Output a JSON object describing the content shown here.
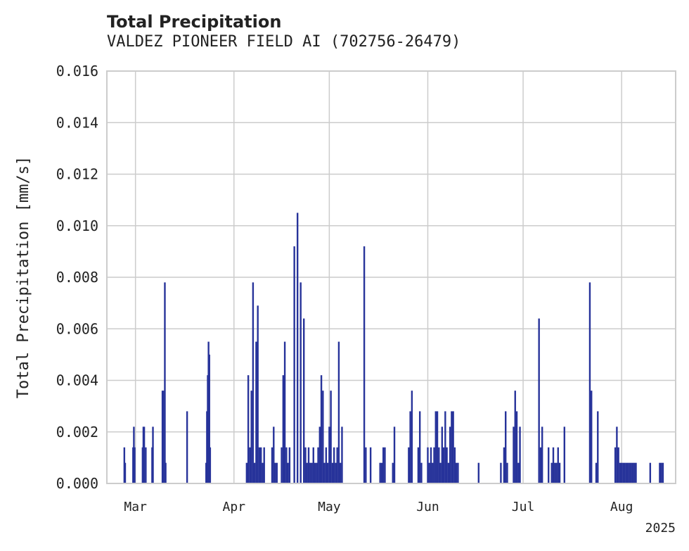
{
  "chart_data": {
    "type": "bar",
    "title": "Total Precipitation",
    "subtitle": "VALDEZ PIONEER FIELD AI (702756-26479)",
    "xlabel": "",
    "ylabel": "Total Precipitation [mm/s]",
    "ylim": [
      0,
      0.016
    ],
    "yticks": [
      "0.000",
      "0.002",
      "0.004",
      "0.006",
      "0.008",
      "0.010",
      "0.012",
      "0.014",
      "0.016"
    ],
    "xlim": [
      "2025-02-20",
      "2025-08-18"
    ],
    "xticks": [
      {
        "date": "2025-03-01",
        "label": "Mar"
      },
      {
        "date": "2025-04-01",
        "label": "Apr"
      },
      {
        "date": "2025-05-01",
        "label": "May"
      },
      {
        "date": "2025-06-01",
        "label": "Jun"
      },
      {
        "date": "2025-07-01",
        "label": "Jul"
      },
      {
        "date": "2025-08-01",
        "label": "Aug"
      }
    ],
    "year_label": "2025",
    "grid": true,
    "bar_color": "#27339a",
    "series": [
      {
        "x": [
          "2025-02-25T12:00",
          "2025-02-25T18:00",
          "2025-02-28T06:00",
          "2025-02-28T12:00",
          "2025-02-28T18:00",
          "2025-03-03T06:00",
          "2025-03-03T12:00",
          "2025-03-03T18:00",
          "2025-03-04T06:00",
          "2025-03-06T06:00",
          "2025-03-06T12:00",
          "2025-03-09T12:00",
          "2025-03-09T18:00",
          "2025-03-10T06:00",
          "2025-03-10T12:00",
          "2025-03-17T06:00",
          "2025-03-23T06:00",
          "2025-03-23T12:00",
          "2025-03-23T18:00",
          "2025-03-24T00:00",
          "2025-03-24T06:00",
          "2025-03-24T12:00",
          "2025-04-05T00:00",
          "2025-04-05T12:00",
          "2025-04-06T00:00",
          "2025-04-06T12:00",
          "2025-04-07T00:00",
          "2025-04-07T12:00",
          "2025-04-08T00:00",
          "2025-04-08T12:00",
          "2025-04-09T00:00",
          "2025-04-09T12:00",
          "2025-04-10T00:00",
          "2025-04-10T12:00",
          "2025-04-13T00:00",
          "2025-04-13T12:00",
          "2025-04-14T00:00",
          "2025-04-14T12:00",
          "2025-04-16T00:00",
          "2025-04-16T12:00",
          "2025-04-17T00:00",
          "2025-04-17T12:00",
          "2025-04-18T00:00",
          "2025-04-18T12:00",
          "2025-04-20T00:00",
          "2025-04-21T00:00",
          "2025-04-22T00:00",
          "2025-04-23T00:00",
          "2025-04-23T12:00",
          "2025-04-24T00:00",
          "2025-04-24T12:00",
          "2025-04-25T00:00",
          "2025-04-25T12:00",
          "2025-04-26T00:00",
          "2025-04-26T12:00",
          "2025-04-27T00:00",
          "2025-04-27T12:00",
          "2025-04-28T00:00",
          "2025-04-28T12:00",
          "2025-04-29T00:00",
          "2025-04-29T12:00",
          "2025-04-30T00:00",
          "2025-04-30T12:00",
          "2025-05-01T00:00",
          "2025-05-01T12:00",
          "2025-05-02T00:00",
          "2025-05-02T12:00",
          "2025-05-03T00:00",
          "2025-05-03T12:00",
          "2025-05-04T00:00",
          "2025-05-04T12:00",
          "2025-05-05T00:00",
          "2025-05-12T00:00",
          "2025-05-12T12:00",
          "2025-05-14T00:00",
          "2025-05-17T00:00",
          "2025-05-17T12:00",
          "2025-05-18T00:00",
          "2025-05-18T12:00",
          "2025-05-21T00:00",
          "2025-05-21T12:00",
          "2025-05-26T00:00",
          "2025-05-26T12:00",
          "2025-05-27T00:00",
          "2025-05-29T00:00",
          "2025-05-29T12:00",
          "2025-05-30T00:00",
          "2025-06-01T00:00",
          "2025-06-01T12:00",
          "2025-06-02T00:00",
          "2025-06-02T12:00",
          "2025-06-03T00:00",
          "2025-06-03T12:00",
          "2025-06-04T00:00",
          "2025-06-04T12:00",
          "2025-06-05T00:00",
          "2025-06-05T12:00",
          "2025-06-06T00:00",
          "2025-06-06T12:00",
          "2025-06-07T00:00",
          "2025-06-07T12:00",
          "2025-06-08T00:00",
          "2025-06-08T12:00",
          "2025-06-09T00:00",
          "2025-06-09T12:00",
          "2025-06-10T00:00",
          "2025-06-10T12:00",
          "2025-06-17T00:00",
          "2025-06-24T00:00",
          "2025-06-25T00:00",
          "2025-06-25T12:00",
          "2025-06-26T00:00",
          "2025-06-28T00:00",
          "2025-06-28T12:00",
          "2025-06-29T00:00",
          "2025-06-29T12:00",
          "2025-06-30T00:00",
          "2025-07-06T00:00",
          "2025-07-06T12:00",
          "2025-07-07T00:00",
          "2025-07-09T00:00",
          "2025-07-10T00:00",
          "2025-07-10T12:00",
          "2025-07-11T00:00",
          "2025-07-11T12:00",
          "2025-07-12T00:00",
          "2025-07-12T12:00",
          "2025-07-14T00:00",
          "2025-07-22T00:00",
          "2025-07-22T12:00",
          "2025-07-24T00:00",
          "2025-07-24T12:00",
          "2025-07-30T00:00",
          "2025-07-30T12:00",
          "2025-07-31T00:00",
          "2025-07-31T12:00",
          "2025-08-01T00:00",
          "2025-08-01T12:00",
          "2025-08-02T00:00",
          "2025-08-02T12:00",
          "2025-08-03T00:00",
          "2025-08-03T12:00",
          "2025-08-04T00:00",
          "2025-08-04T12:00",
          "2025-08-05T00:00",
          "2025-08-05T12:00",
          "2025-08-10T00:00",
          "2025-08-13T00:00",
          "2025-08-13T12:00",
          "2025-08-14T00:00"
        ],
        "values": [
          0.0014,
          0.0008,
          0.0014,
          0.0022,
          0.0014,
          0.0014,
          0.0022,
          0.0022,
          0.0014,
          0.0014,
          0.0022,
          0.0036,
          0.0036,
          0.0078,
          0.0008,
          0.0028,
          0.0008,
          0.0028,
          0.0042,
          0.0055,
          0.005,
          0.0014,
          0.0008,
          0.0042,
          0.0014,
          0.0036,
          0.0078,
          0.0008,
          0.0055,
          0.0069,
          0.0014,
          0.0014,
          0.0008,
          0.0014,
          0.0014,
          0.0022,
          0.0008,
          0.0008,
          0.0014,
          0.0042,
          0.0055,
          0.0014,
          0.0008,
          0.0014,
          0.0092,
          0.0105,
          0.0078,
          0.0064,
          0.0014,
          0.0008,
          0.0014,
          0.0008,
          0.0008,
          0.0014,
          0.0008,
          0.0008,
          0.0014,
          0.0022,
          0.0042,
          0.0036,
          0.0008,
          0.0014,
          0.0008,
          0.0022,
          0.0036,
          0.0008,
          0.0014,
          0.0008,
          0.0014,
          0.0055,
          0.0008,
          0.0022,
          0.0092,
          0.0014,
          0.0014,
          0.0008,
          0.0008,
          0.0014,
          0.0014,
          0.0008,
          0.0022,
          0.0014,
          0.0028,
          0.0036,
          0.0014,
          0.0028,
          0.0008,
          0.0014,
          0.0008,
          0.0014,
          0.0008,
          0.0014,
          0.0028,
          0.0028,
          0.0014,
          0.0008,
          0.0022,
          0.0014,
          0.0028,
          0.0014,
          0.0008,
          0.0022,
          0.0028,
          0.0028,
          0.0014,
          0.0008,
          0.0008,
          0.0008,
          0.0008,
          0.0014,
          0.0028,
          0.0008,
          0.0022,
          0.0036,
          0.0028,
          0.0008,
          0.0022,
          0.0064,
          0.0014,
          0.0022,
          0.0014,
          0.0008,
          0.0014,
          0.0008,
          0.0008,
          0.0014,
          0.0008,
          0.0022,
          0.0078,
          0.0036,
          0.0008,
          0.0028,
          0.0014,
          0.0022,
          0.0014,
          0.0008,
          0.0008,
          0.0008,
          0.0008,
          0.0008,
          0.0008,
          0.0008,
          0.0008,
          0.0008,
          0.0008,
          0.0008,
          0.0008,
          0.0008,
          0.0008,
          0.0008
        ]
      }
    ]
  }
}
